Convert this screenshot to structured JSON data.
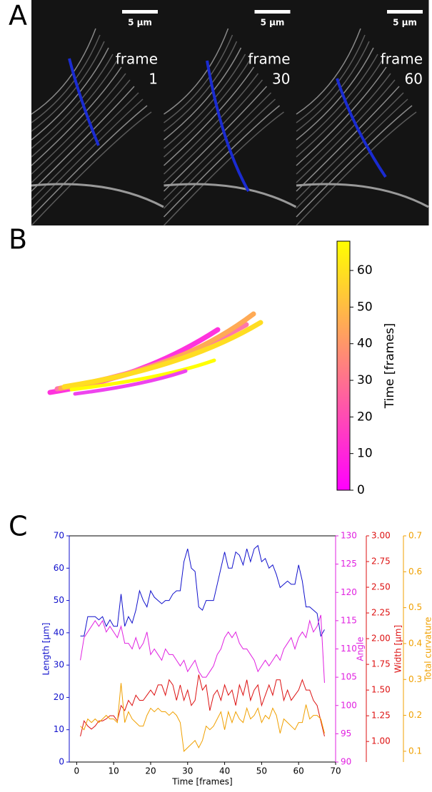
{
  "panel_labels": [
    "A",
    "B",
    "C"
  ],
  "panel_a": {
    "frames": [
      {
        "scale_bar": "5 µm",
        "label": "frame",
        "number": "1"
      },
      {
        "scale_bar": "5 µm",
        "label": "frame",
        "number": "30"
      },
      {
        "scale_bar": "5 µm",
        "label": "frame",
        "number": "60"
      }
    ]
  },
  "chart_data": [
    {
      "type": "colorbar",
      "label": "Time [frames]",
      "colors": [
        "#ff00ff",
        "#ffff00"
      ],
      "ylim": [
        0,
        68
      ],
      "yticks": [
        0,
        10,
        20,
        30,
        40,
        50,
        60
      ]
    },
    {
      "type": "line",
      "xlabel": "Time [frames]",
      "x": [
        1,
        2,
        3,
        4,
        5,
        6,
        7,
        8,
        9,
        10,
        11,
        12,
        13,
        14,
        15,
        16,
        17,
        18,
        19,
        20,
        21,
        22,
        23,
        24,
        25,
        26,
        27,
        28,
        29,
        30,
        31,
        32,
        33,
        34,
        35,
        36,
        37,
        38,
        39,
        40,
        41,
        42,
        43,
        44,
        45,
        46,
        47,
        48,
        49,
        50,
        51,
        52,
        53,
        54,
        55,
        56,
        57,
        58,
        59,
        60,
        61,
        62,
        63,
        64,
        65,
        66,
        67
      ],
      "xlim": [
        -2,
        70
      ],
      "xticks": [
        0,
        10,
        20,
        30,
        40,
        50,
        60,
        70
      ],
      "ylabel": "Length [µm]",
      "ylim": [
        0,
        70
      ],
      "yticks": [
        0,
        10,
        20,
        30,
        40,
        50,
        60,
        70
      ],
      "y2label": "Angle",
      "y2lim": [
        90,
        130
      ],
      "y2ticks": [
        90,
        95,
        100,
        105,
        110,
        115,
        120,
        125,
        130
      ],
      "y3label": "Width [µm]",
      "y3lim": [
        0.8,
        3.0
      ],
      "y3ticks": [
        {
          "value": 1,
          "label": "1.00"
        },
        {
          "value": 1.25,
          "label": "1.25"
        },
        {
          "value": 1.5,
          "label": "1.50"
        },
        {
          "value": 1.75,
          "label": "1.75"
        },
        {
          "value": 2,
          "label": "2.00"
        },
        {
          "value": 2.25,
          "label": "2.25"
        },
        {
          "value": 2.5,
          "label": "2.50"
        },
        {
          "value": 2.75,
          "label": "2.75"
        },
        {
          "value": 3,
          "label": "3.00"
        }
      ],
      "y4label": "Total curvature",
      "y4lim": [
        0.07,
        0.7
      ],
      "y4ticks": [
        0.1,
        0.2,
        0.3,
        0.4,
        0.5,
        0.6,
        0.7
      ],
      "series": [
        {
          "axis": "y",
          "color": "#1010cc",
          "values": [
            39,
            39,
            45,
            45,
            45,
            44,
            45,
            42,
            44,
            42,
            42,
            52,
            42,
            45,
            43,
            47,
            53,
            50,
            48,
            53,
            51,
            50,
            49,
            50,
            50,
            52,
            53,
            53,
            62,
            66,
            60,
            59,
            48,
            47,
            50,
            50,
            50,
            55,
            60,
            65,
            60,
            60,
            65,
            64,
            61,
            66,
            62,
            66,
            67,
            62,
            63,
            60,
            61,
            58,
            54,
            55,
            56,
            55,
            55,
            61,
            56,
            48,
            48,
            47,
            46,
            39,
            41
          ]
        },
        {
          "axis": "y2",
          "color": "#e020e0",
          "values": [
            108,
            112,
            113,
            114,
            115,
            114,
            115,
            113,
            114,
            113,
            112,
            114,
            111,
            111,
            110,
            112,
            110,
            111,
            113,
            109,
            110,
            109,
            108,
            110,
            109,
            109,
            108,
            107,
            108,
            106,
            107,
            108,
            106,
            105,
            105,
            106,
            107,
            109,
            110,
            112,
            113,
            112,
            113,
            111,
            110,
            110,
            109,
            108,
            106,
            107,
            108,
            107,
            108,
            109,
            108,
            110,
            111,
            112,
            110,
            112,
            113,
            112,
            115,
            113,
            114,
            116,
            104
          ]
        },
        {
          "axis": "y3",
          "color": "#dd1111",
          "values": [
            1.05,
            1.2,
            1.15,
            1.12,
            1.15,
            1.2,
            1.2,
            1.22,
            1.25,
            1.25,
            1.2,
            1.35,
            1.3,
            1.4,
            1.35,
            1.45,
            1.4,
            1.4,
            1.45,
            1.5,
            1.45,
            1.55,
            1.55,
            1.45,
            1.6,
            1.55,
            1.4,
            1.55,
            1.4,
            1.5,
            1.35,
            1.4,
            1.65,
            1.5,
            1.55,
            1.3,
            1.45,
            1.5,
            1.4,
            1.55,
            1.45,
            1.5,
            1.35,
            1.55,
            1.45,
            1.6,
            1.4,
            1.5,
            1.55,
            1.35,
            1.45,
            1.55,
            1.45,
            1.6,
            1.6,
            1.4,
            1.5,
            1.4,
            1.45,
            1.5,
            1.6,
            1.5,
            1.5,
            1.4,
            1.35,
            1.2,
            1.05
          ]
        },
        {
          "axis": "y4",
          "color": "#f0a000",
          "values": [
            0.17,
            0.16,
            0.19,
            0.18,
            0.19,
            0.18,
            0.19,
            0.2,
            0.19,
            0.19,
            0.18,
            0.29,
            0.18,
            0.21,
            0.19,
            0.18,
            0.17,
            0.17,
            0.2,
            0.22,
            0.21,
            0.22,
            0.21,
            0.21,
            0.2,
            0.21,
            0.2,
            0.18,
            0.1,
            0.11,
            0.12,
            0.13,
            0.11,
            0.13,
            0.17,
            0.16,
            0.17,
            0.19,
            0.21,
            0.16,
            0.21,
            0.18,
            0.21,
            0.19,
            0.18,
            0.22,
            0.19,
            0.2,
            0.22,
            0.18,
            0.2,
            0.19,
            0.22,
            0.2,
            0.15,
            0.19,
            0.18,
            0.17,
            0.16,
            0.18,
            0.18,
            0.23,
            0.19,
            0.2,
            0.2,
            0.19,
            0.15
          ]
        }
      ]
    }
  ]
}
